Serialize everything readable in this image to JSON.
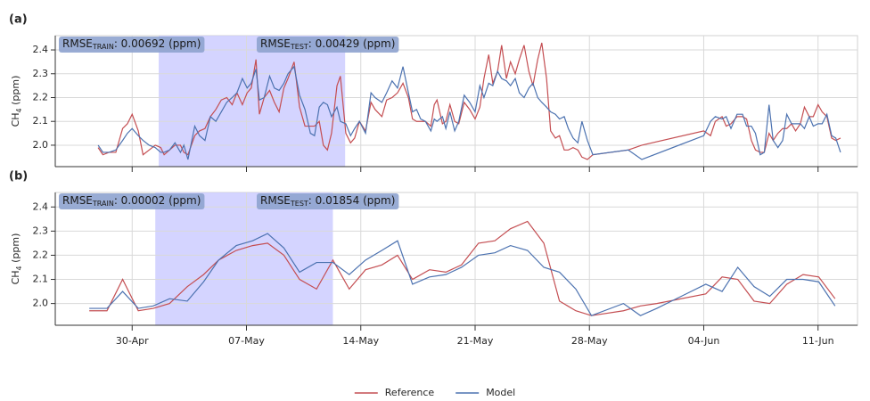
{
  "chart_data": [
    {
      "type": "line",
      "label": "(a)",
      "ylabel": [
        "CH",
        "4",
        " (ppm)"
      ],
      "x": [
        "04-27 22:00",
        "04-28 05:00",
        "04-28 14:00",
        "04-29 00:00",
        "04-29 10:00",
        "04-29 17:00",
        "04-30 00:00",
        "04-30 09:00",
        "04-30 16:00",
        "05-01 01:00",
        "05-01 10:00",
        "05-01 18:00",
        "05-01 23:00",
        "05-02 07:00",
        "05-02 15:00",
        "05-02 23:00",
        "05-03 04:00",
        "05-03 10:00",
        "05-03 20:00",
        "05-04 03:00",
        "05-04 11:00",
        "05-04 19:00",
        "05-05 03:00",
        "05-05 11:00",
        "05-05 19:00",
        "05-06 03:00",
        "05-06 10:00",
        "05-06 18:00",
        "05-07 01:00",
        "05-07 07:00",
        "05-07 14:00",
        "05-07 19:00",
        "05-08 02:00",
        "05-08 10:00",
        "05-08 17:00",
        "05-09 00:00",
        "05-09 07:00",
        "05-09 13:00",
        "05-09 22:00",
        "05-10 06:00",
        "05-10 14:00",
        "05-10 22:00",
        "05-11 04:00",
        "05-11 11:00",
        "05-11 17:00",
        "05-11 23:00",
        "05-12 05:00",
        "05-12 13:00",
        "05-12 18:00",
        "05-13 02:00",
        "05-13 09:00",
        "05-13 15:00",
        "05-13 22:00",
        "05-14 07:00",
        "05-14 15:00",
        "05-14 21:00",
        "05-15 07:00",
        "05-15 14:00",
        "05-15 22:00",
        "05-16 06:00",
        "05-16 14:00",
        "05-16 22:00",
        "05-17 04:00",
        "05-17 10:00",
        "05-17 16:00",
        "05-17 23:00",
        "05-18 07:00",
        "05-18 12:00",
        "05-18 16:00",
        "05-19 00:00",
        "05-19 05:00",
        "05-19 11:00",
        "05-19 18:00",
        "05-20 00:00",
        "05-20 08:00",
        "05-20 16:00",
        "05-21 00:00",
        "05-21 07:00",
        "05-21 13:00",
        "05-21 20:00",
        "05-22 02:00",
        "05-22 09:00",
        "05-22 15:00",
        "05-22 22:00",
        "05-23 04:00",
        "05-23 11:00",
        "05-23 17:00",
        "05-24 00:00",
        "05-24 07:00",
        "05-24 13:00",
        "05-24 20:00",
        "05-25 02:00",
        "05-25 09:00",
        "05-25 15:00",
        "05-25 22:00",
        "05-26 04:00",
        "05-26 11:00",
        "05-26 17:00",
        "05-27 00:00",
        "05-27 07:00",
        "05-27 13:00",
        "05-27 21:00",
        "05-28 05:00",
        "05-30 09:00",
        "05-31 05:00",
        "06-04 00:00",
        "06-04 10:00",
        "06-04 17:00",
        "06-05 03:00",
        "06-05 09:00",
        "06-05 16:00",
        "06-06 01:00",
        "06-06 09:00",
        "06-06 15:00",
        "06-06 22:00",
        "06-07 04:00",
        "06-07 11:00",
        "06-07 17:00",
        "06-08 00:00",
        "06-08 06:00",
        "06-08 13:00",
        "06-08 20:00",
        "06-09 02:00",
        "06-09 09:00",
        "06-09 15:00",
        "06-09 22:00",
        "06-10 04:00",
        "06-10 11:00",
        "06-10 17:00",
        "06-11 00:00",
        "06-11 06:00",
        "06-11 13:00",
        "06-11 20:00",
        "06-12 02:00",
        "06-12 09:00"
      ],
      "series": [
        {
          "name": "Reference",
          "color": "#c44e52",
          "values": [
            1.99,
            1.96,
            1.97,
            1.97,
            2.07,
            2.09,
            2.13,
            2.06,
            1.96,
            1.98,
            2.0,
            1.99,
            1.96,
            1.98,
            2.0,
            2.0,
            1.97,
            1.96,
            2.04,
            2.06,
            2.07,
            2.12,
            2.15,
            2.19,
            2.2,
            2.17,
            2.22,
            2.17,
            2.22,
            2.24,
            2.36,
            2.13,
            2.2,
            2.23,
            2.18,
            2.14,
            2.24,
            2.28,
            2.35,
            2.16,
            2.08,
            2.08,
            2.08,
            2.1,
            2.0,
            1.98,
            2.05,
            2.25,
            2.29,
            2.05,
            2.01,
            2.03,
            2.1,
            2.06,
            2.18,
            2.15,
            2.12,
            2.19,
            2.2,
            2.22,
            2.26,
            2.2,
            2.11,
            2.1,
            2.1,
            2.1,
            2.08,
            2.17,
            2.19,
            2.09,
            2.1,
            2.17,
            2.1,
            2.09,
            2.18,
            2.15,
            2.11,
            2.16,
            2.28,
            2.38,
            2.26,
            2.31,
            2.42,
            2.28,
            2.35,
            2.3,
            2.36,
            2.42,
            2.31,
            2.25,
            2.36,
            2.43,
            2.28,
            2.06,
            2.03,
            2.04,
            1.98,
            1.98,
            1.99,
            1.98,
            1.95,
            1.94,
            1.96,
            1.98,
            2.0,
            2.06,
            2.04,
            2.1,
            2.12,
            2.08,
            2.09,
            2.12,
            2.12,
            2.11,
            2.02,
            1.98,
            1.97,
            1.97,
            2.05,
            2.02,
            2.05,
            2.07,
            2.07,
            2.09,
            2.06,
            2.09,
            2.16,
            2.12,
            2.12,
            2.17,
            2.14,
            2.12,
            2.03,
            2.02,
            2.03
          ]
        },
        {
          "name": "Model",
          "color": "#4c72b0",
          "values": [
            2.0,
            1.97,
            1.97,
            1.98,
            2.02,
            2.05,
            2.07,
            2.04,
            2.02,
            2.0,
            1.99,
            1.97,
            1.97,
            1.98,
            2.01,
            1.97,
            2.0,
            1.94,
            2.08,
            2.04,
            2.02,
            2.12,
            2.1,
            2.14,
            2.18,
            2.2,
            2.22,
            2.28,
            2.24,
            2.26,
            2.32,
            2.19,
            2.2,
            2.29,
            2.24,
            2.23,
            2.26,
            2.3,
            2.33,
            2.21,
            2.15,
            2.05,
            2.04,
            2.16,
            2.18,
            2.17,
            2.12,
            2.16,
            2.1,
            2.09,
            2.04,
            2.07,
            2.1,
            2.05,
            2.22,
            2.2,
            2.18,
            2.22,
            2.27,
            2.24,
            2.33,
            2.22,
            2.14,
            2.15,
            2.11,
            2.1,
            2.06,
            2.11,
            2.1,
            2.12,
            2.07,
            2.14,
            2.06,
            2.1,
            2.21,
            2.18,
            2.14,
            2.25,
            2.2,
            2.26,
            2.25,
            2.31,
            2.28,
            2.27,
            2.25,
            2.28,
            2.22,
            2.2,
            2.24,
            2.26,
            2.2,
            2.18,
            2.16,
            2.14,
            2.13,
            2.11,
            2.12,
            2.07,
            2.03,
            2.01,
            2.1,
            2.02,
            1.96,
            1.98,
            1.94,
            2.04,
            2.1,
            2.12,
            2.11,
            2.12,
            2.07,
            2.13,
            2.13,
            2.08,
            2.08,
            2.05,
            1.96,
            1.97,
            2.17,
            2.02,
            1.99,
            2.02,
            2.13,
            2.09,
            2.09,
            2.09,
            2.07,
            2.12,
            2.08,
            2.09,
            2.09,
            2.13,
            2.04,
            2.03,
            1.97
          ]
        }
      ],
      "xlim": [
        "04-25 07:00",
        "06-13 10:00"
      ],
      "xticks": [
        "04-30",
        "05-07",
        "05-14",
        "05-21",
        "05-28",
        "06-04",
        "06-11"
      ],
      "ylim": [
        1.91,
        2.46
      ],
      "yticks": [
        {
          "value": 2,
          "label": "2.0"
        },
        {
          "value": 2.1,
          "label": "2.1"
        },
        {
          "value": 2.2,
          "label": "2.2"
        },
        {
          "value": 2.3,
          "label": "2.3"
        },
        {
          "value": 2.4,
          "label": "2.4"
        }
      ],
      "grid": true,
      "highlight": {
        "start": "05-01 15:00",
        "end": "05-13 01:00",
        "color": "#ccccff"
      },
      "annotations": [
        [
          "RMSE",
          "TRAIN",
          ": 0.00692 (ppm)"
        ],
        [
          "RMSE",
          "TEST",
          ": 0.00429 (ppm)"
        ]
      ]
    },
    {
      "type": "line",
      "label": "(b)",
      "ylabel": [
        "CH",
        "4",
        " (ppm)"
      ],
      "x": [
        "04-27 09:00",
        "04-28 11:00",
        "04-29 10:00",
        "04-30 09:00",
        "05-01 07:00",
        "05-02 07:00",
        "05-03 09:00",
        "05-04 09:00",
        "05-05 07:00",
        "05-06 09:00",
        "05-07 09:00",
        "05-08 07:00",
        "05-09 07:00",
        "05-10 06:00",
        "05-11 07:00",
        "05-12 07:00",
        "05-13 07:00",
        "05-14 07:00",
        "05-15 07:00",
        "05-16 06:00",
        "05-17 04:00",
        "05-18 05:00",
        "05-19 05:00",
        "05-20 04:00",
        "05-21 05:00",
        "05-22 05:00",
        "05-23 04:00",
        "05-24 05:00",
        "05-25 05:00",
        "05-26 04:00",
        "05-27 04:00",
        "05-28 03:00",
        "05-30 02:00",
        "05-31 03:00",
        "06-01 03:00",
        "06-04 03:00",
        "06-05 03:00",
        "06-06 02:00",
        "06-07 02:00",
        "06-08 01:00",
        "06-09 02:00",
        "06-10 02:00",
        "06-11 01:00",
        "06-12 01:00"
      ],
      "series": [
        {
          "name": "Reference",
          "color": "#c44e52",
          "values": [
            1.97,
            1.97,
            2.1,
            1.97,
            1.98,
            2.0,
            2.07,
            2.12,
            2.18,
            2.22,
            2.24,
            2.25,
            2.2,
            2.1,
            2.06,
            2.18,
            2.06,
            2.14,
            2.16,
            2.2,
            2.1,
            2.14,
            2.13,
            2.16,
            2.25,
            2.26,
            2.31,
            2.34,
            2.25,
            2.01,
            1.97,
            1.95,
            1.97,
            1.99,
            2.0,
            2.04,
            2.11,
            2.1,
            2.01,
            2.0,
            2.08,
            2.12,
            2.11,
            2.02
          ]
        },
        {
          "name": "Model",
          "color": "#4c72b0",
          "values": [
            1.98,
            1.98,
            2.05,
            1.98,
            1.99,
            2.02,
            2.01,
            2.09,
            2.18,
            2.24,
            2.26,
            2.29,
            2.23,
            2.13,
            2.17,
            2.17,
            2.12,
            2.18,
            2.22,
            2.26,
            2.08,
            2.11,
            2.12,
            2.15,
            2.2,
            2.21,
            2.24,
            2.22,
            2.15,
            2.13,
            2.06,
            1.95,
            2.0,
            1.95,
            1.98,
            2.08,
            2.05,
            2.15,
            2.07,
            2.03,
            2.1,
            2.1,
            2.09,
            1.99
          ]
        }
      ],
      "xlim": [
        "04-25 07:00",
        "06-13 10:00"
      ],
      "xticks": [
        {
          "value": "04-30",
          "label": "30-Apr"
        },
        {
          "value": "05-07",
          "label": "07-May"
        },
        {
          "value": "05-14",
          "label": "14-May"
        },
        {
          "value": "05-21",
          "label": "21-May"
        },
        {
          "value": "05-28",
          "label": "28-May"
        },
        {
          "value": "06-04",
          "label": "04-Jun"
        },
        {
          "value": "06-11",
          "label": "11-Jun"
        }
      ],
      "ylim": [
        1.91,
        2.46
      ],
      "yticks": [
        {
          "value": 2,
          "label": "2.0"
        },
        {
          "value": 2.1,
          "label": "2.1"
        },
        {
          "value": 2.2,
          "label": "2.2"
        },
        {
          "value": 2.3,
          "label": "2.3"
        },
        {
          "value": 2.4,
          "label": "2.4"
        }
      ],
      "grid": true,
      "highlight": {
        "start": "05-01 10:00",
        "end": "05-12 07:00",
        "color": "#ccccff"
      },
      "annotations": [
        [
          "RMSE",
          "TRAIN",
          ": 0.00002 (ppm)"
        ],
        [
          "RMSE",
          "TEST",
          ": 0.01854 (ppm)"
        ]
      ],
      "legend": "lower center"
    }
  ]
}
